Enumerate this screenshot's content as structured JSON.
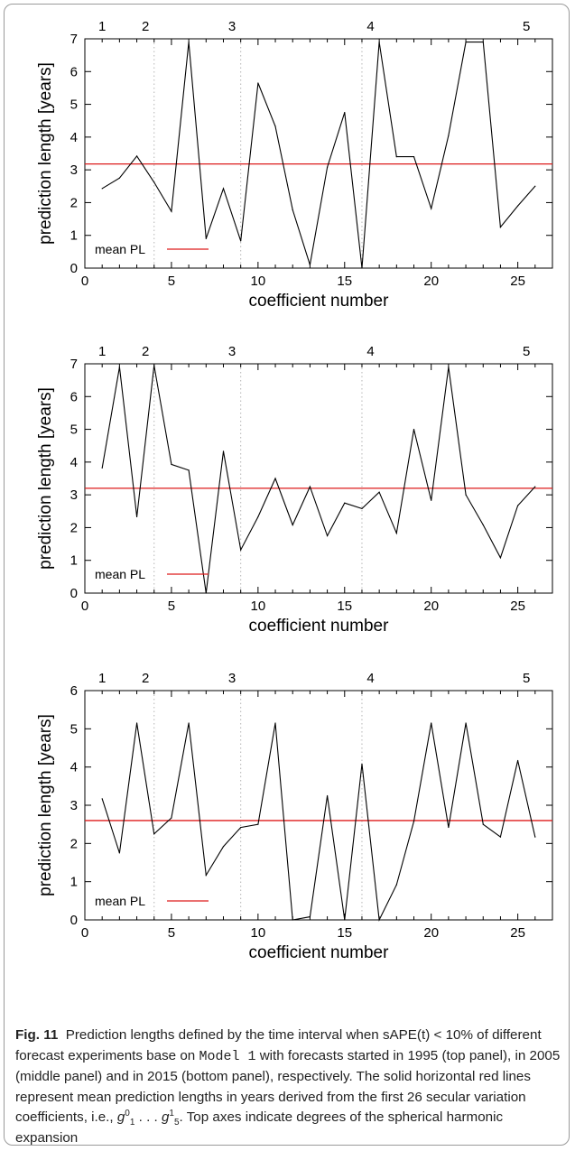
{
  "figure": {
    "label": "Fig. 11",
    "caption_parts": {
      "p1": "Prediction lengths defined by the time interval when sAPE(t) < 10% of different forecast experiments base on ",
      "model": "Model 1",
      "p2": " with forecasts started in 1995 (top panel), in 2005 (middle panel) and in 2015 (bottom panel), respectively. The solid horizontal red lines represent mean prediction lengths in years derived from the first 26 secular variation coefficients, i.e., ",
      "g_first": "g",
      "g_first_sup": "0",
      "g_first_sub": "1",
      "dots": " . . . ",
      "g_last": "g",
      "g_last_sup": "1",
      "g_last_sub": "5",
      "p3": ". Top axes indicate degrees of the spherical harmonic expansion"
    }
  },
  "chart_data": [
    {
      "type": "line",
      "xlabel": "coefficient number",
      "ylabel": "prediction length [years]",
      "xlim": [
        0,
        27
      ],
      "ylim": [
        0,
        7
      ],
      "xticks": [
        0,
        5,
        10,
        15,
        20,
        25
      ],
      "yticks": [
        0,
        1,
        2,
        3,
        4,
        5,
        6,
        7
      ],
      "top_axis": {
        "labels": [
          "1",
          "2",
          "3",
          "4",
          "5"
        ],
        "positions": [
          1,
          3.5,
          8.5,
          16.5,
          25.5
        ],
        "dotted_lines": [
          4,
          9,
          16
        ]
      },
      "x": [
        1,
        2,
        3,
        4,
        5,
        6,
        7,
        8,
        9,
        10,
        11,
        12,
        13,
        14,
        15,
        16,
        17,
        18,
        19,
        20,
        21,
        22,
        23,
        24,
        25,
        26
      ],
      "values": [
        2.43,
        2.75,
        3.42,
        2.62,
        1.73,
        6.9,
        0.9,
        2.43,
        0.83,
        5.65,
        4.33,
        1.78,
        0.1,
        3.08,
        4.75,
        0.0,
        6.9,
        3.4,
        3.4,
        1.82,
        4.05,
        6.9,
        6.9,
        1.25,
        1.9,
        2.5
      ],
      "mean": 3.18,
      "legend": {
        "label": "mean PL",
        "position": "bottom-left"
      },
      "mean_color": "#dd1c1c",
      "line_color": "#000000"
    },
    {
      "type": "line",
      "xlabel": "coefficient number",
      "ylabel": "prediction length [years]",
      "xlim": [
        0,
        27
      ],
      "ylim": [
        0,
        7
      ],
      "xticks": [
        0,
        5,
        10,
        15,
        20,
        25
      ],
      "yticks": [
        0,
        1,
        2,
        3,
        4,
        5,
        6,
        7
      ],
      "top_axis": {
        "labels": [
          "1",
          "2",
          "3",
          "4",
          "5"
        ],
        "positions": [
          1,
          3.5,
          8.5,
          16.5,
          25.5
        ],
        "dotted_lines": [
          4,
          9,
          16
        ]
      },
      "x": [
        1,
        2,
        3,
        4,
        5,
        6,
        7,
        8,
        9,
        10,
        11,
        12,
        13,
        14,
        15,
        16,
        17,
        18,
        19,
        20,
        21,
        22,
        23,
        24,
        25,
        26
      ],
      "values": [
        3.82,
        6.9,
        2.33,
        6.95,
        3.93,
        3.75,
        0.0,
        4.33,
        1.32,
        2.33,
        3.5,
        2.08,
        3.25,
        1.75,
        2.75,
        2.58,
        3.08,
        1.83,
        5.0,
        2.83,
        6.9,
        3.0,
        2.08,
        1.08,
        2.67,
        3.25
      ],
      "mean": 3.2,
      "legend": {
        "label": "mean PL",
        "position": "bottom-left"
      },
      "mean_color": "#dd1c1c",
      "line_color": "#000000"
    },
    {
      "type": "line",
      "xlabel": "coefficient number",
      "ylabel": "prediction length [years]",
      "xlim": [
        0,
        27
      ],
      "ylim": [
        0,
        6
      ],
      "xticks": [
        0,
        5,
        10,
        15,
        20,
        25
      ],
      "yticks": [
        0,
        1,
        2,
        3,
        4,
        5,
        6
      ],
      "top_axis": {
        "labels": [
          "1",
          "2",
          "3",
          "4",
          "5"
        ],
        "positions": [
          1,
          3.5,
          8.5,
          16.5,
          25.5
        ],
        "dotted_lines": [
          4,
          9,
          16
        ]
      },
      "x": [
        1,
        2,
        3,
        4,
        5,
        6,
        7,
        8,
        9,
        10,
        11,
        12,
        13,
        14,
        15,
        16,
        17,
        18,
        19,
        20,
        21,
        22,
        23,
        24,
        25,
        26
      ],
      "values": [
        3.17,
        1.75,
        5.15,
        2.25,
        2.67,
        5.15,
        1.17,
        1.92,
        2.42,
        2.5,
        5.15,
        0.0,
        0.08,
        3.25,
        0.0,
        4.08,
        0.0,
        0.92,
        2.58,
        5.15,
        2.42,
        5.15,
        2.5,
        2.17,
        4.17,
        2.17
      ],
      "mean": 2.6,
      "legend": {
        "label": "mean PL",
        "position": "bottom-left"
      },
      "mean_color": "#dd1c1c",
      "line_color": "#000000"
    }
  ]
}
